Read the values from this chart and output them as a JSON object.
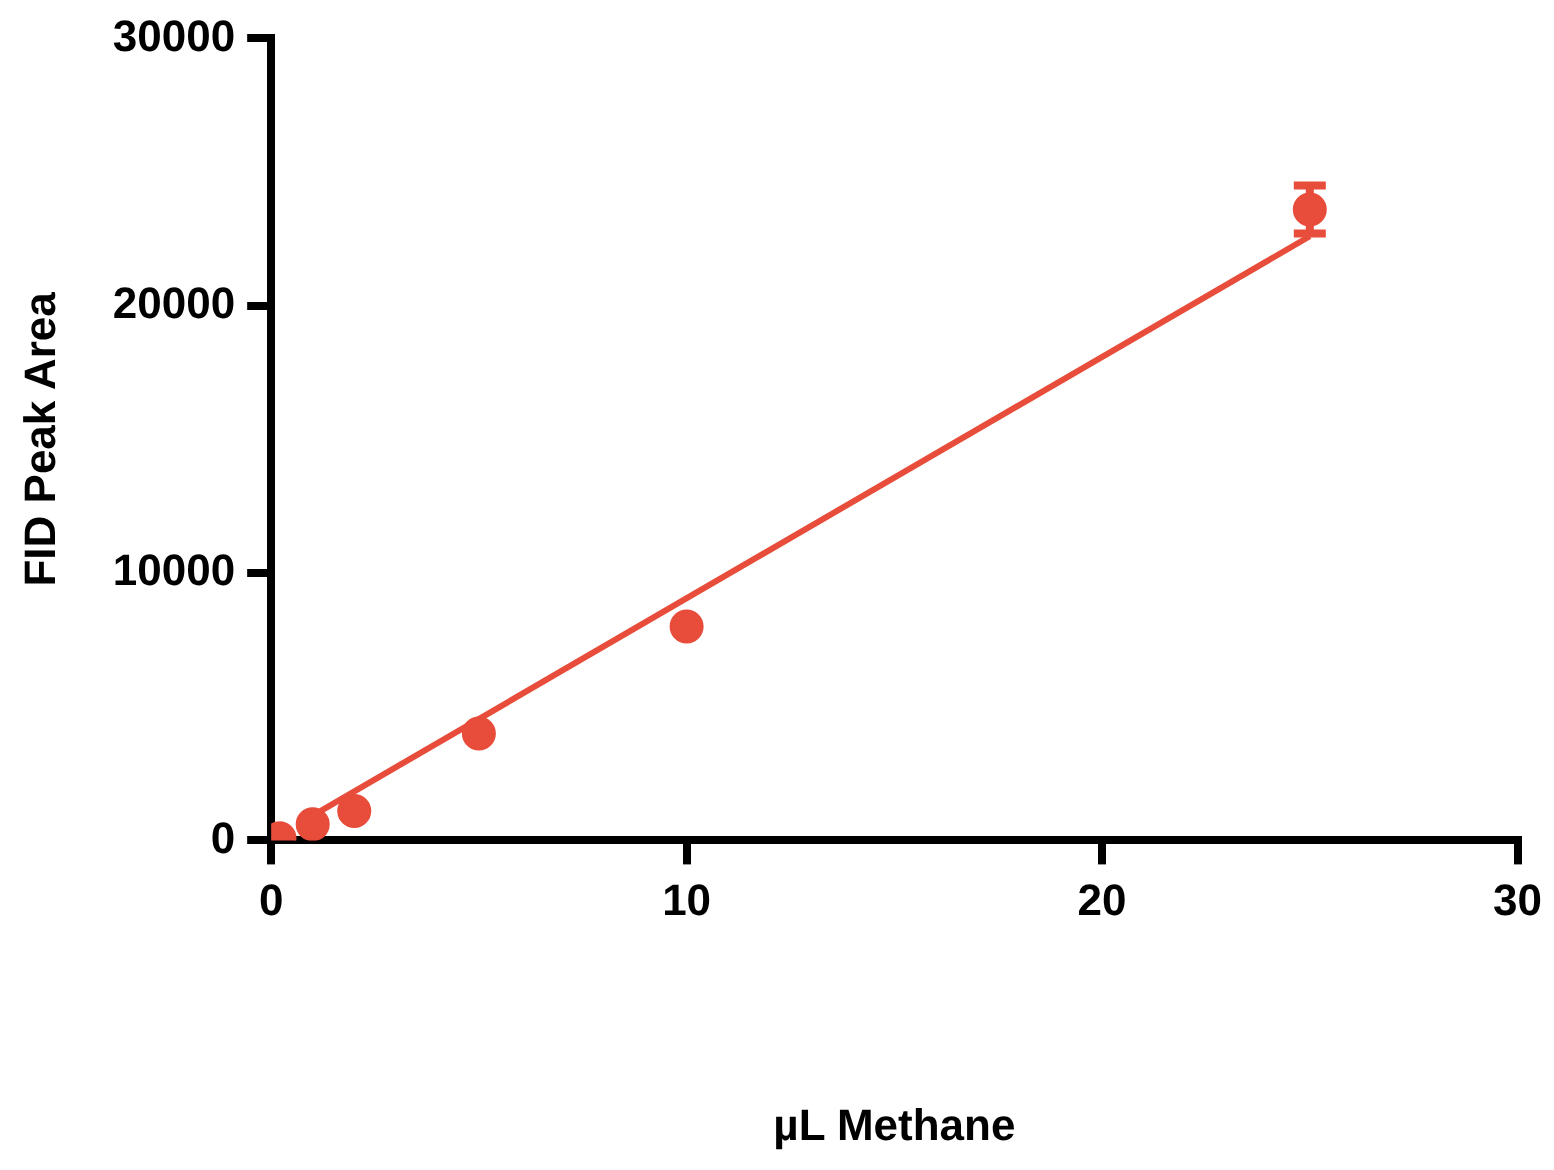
{
  "chart_data": {
    "type": "scatter",
    "xlabel": "µL Methane",
    "ylabel": "FID Peak Area",
    "xlim": [
      0,
      30
    ],
    "xticks": [
      0,
      10,
      20,
      30
    ],
    "ylim": [
      0,
      30000
    ],
    "yticks": [
      0,
      10000,
      20000,
      30000
    ],
    "grid": false,
    "legend": false,
    "marker": "circle",
    "series": [
      {
        "color": "#e84c3a",
        "x": [
          0.2,
          1,
          2,
          5,
          10,
          25
        ],
        "values": [
          80,
          600,
          1100,
          4000,
          8000,
          23600
        ],
        "errors": [
          null,
          null,
          null,
          null,
          null,
          900
        ]
      },
      {
        "type": "line",
        "color": "#e84c3a",
        "x": [
          1,
          25
        ],
        "values": [
          930,
          22600
        ],
        "marker": "none",
        "line_style": "solid"
      }
    ]
  }
}
